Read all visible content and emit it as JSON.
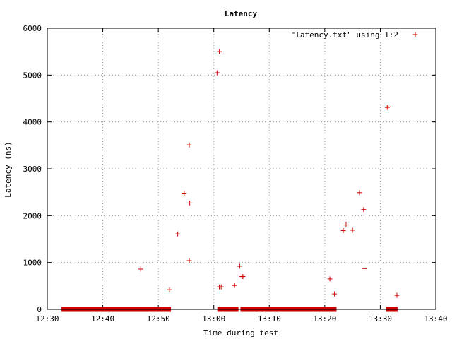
{
  "chart_data": {
    "type": "scatter",
    "title": "Latency",
    "xlabel": "Time during test",
    "ylabel": "Latency (ns)",
    "legend": {
      "label": "\"latency.txt\" using 1:2",
      "placement": "top-right"
    },
    "grid": true,
    "marker": "plus",
    "color": "#cc0000",
    "xlim": [
      "12:30",
      "13:40"
    ],
    "ylim": [
      0,
      6000
    ],
    "xticks": [
      "12:30",
      "12:40",
      "12:50",
      "13:00",
      "13:10",
      "13:20",
      "13:30",
      "13:40"
    ],
    "yticks": [
      0,
      1000,
      2000,
      3000,
      4000,
      5000,
      6000
    ],
    "series": [
      {
        "x": [
          "12:46:50",
          "12:52:00",
          "12:53:30",
          "12:54:40",
          "12:55:35",
          "12:55:40",
          "12:55:35",
          "13:00:35",
          "13:01:00",
          "13:01:20",
          "13:01:00",
          "13:03:45",
          "13:04:40",
          "13:05:05",
          "13:05:15",
          "13:20:55",
          "13:21:45",
          "13:23:20",
          "13:23:50",
          "13:25:00",
          "13:26:15",
          "13:27:00",
          "13:27:05",
          "13:31:15",
          "13:31:25",
          "13:33:00"
        ],
        "y": [
          860,
          420,
          1610,
          2480,
          3510,
          2270,
          1040,
          5050,
          5500,
          480,
          480,
          510,
          920,
          700,
          700,
          650,
          330,
          1680,
          1800,
          1690,
          2490,
          2130,
          870,
          4310,
          4320,
          300
        ]
      },
      {
        "x_ranges": [
          [
            "12:33:00",
            "12:46:00"
          ],
          [
            "12:46:45",
            "12:51:50"
          ],
          [
            "13:01:05",
            "13:03:00"
          ],
          [
            "13:03:45",
            "13:04:00"
          ],
          [
            "13:05:15",
            "13:20:25"
          ],
          [
            "13:21:00",
            "13:21:40"
          ],
          [
            "13:31:30",
            "13:32:40"
          ]
        ],
        "y": 0
      }
    ]
  }
}
